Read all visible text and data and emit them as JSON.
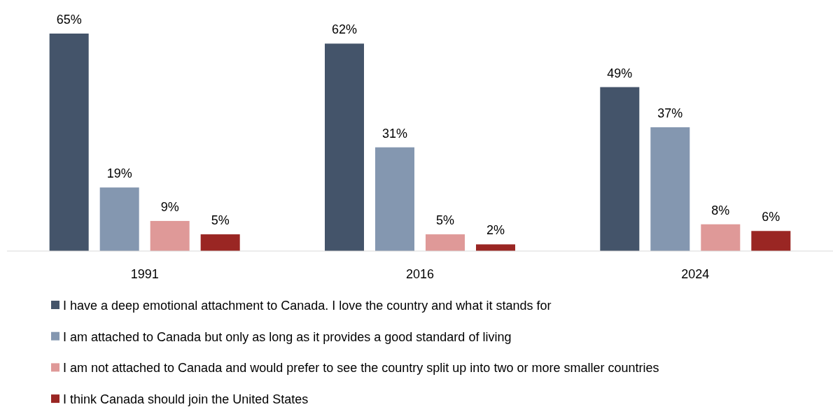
{
  "chart_data": {
    "type": "bar",
    "categories": [
      "1991",
      "2016",
      "2024"
    ],
    "series": [
      {
        "name": "I have a deep emotional attachment to Canada. I love the country and what it stands for",
        "color": "#44546a",
        "values": [
          65,
          62,
          49
        ],
        "value_labels": [
          "65%",
          "62%",
          "49%"
        ]
      },
      {
        "name": "I am attached to Canada but only as long as it provides a good standard of living",
        "color": "#8497b0",
        "values": [
          19,
          31,
          37
        ],
        "value_labels": [
          "19%",
          "31%",
          "37%"
        ]
      },
      {
        "name": "I am not attached to Canada and would prefer to see the country split up into two or more smaller countries",
        "color": "#df9998",
        "values": [
          9,
          5,
          8
        ],
        "value_labels": [
          "9%",
          "5%",
          "8%"
        ]
      },
      {
        "name": "I think Canada should join the United States",
        "color": "#9a2623",
        "values": [
          5,
          2,
          6
        ],
        "value_labels": [
          "5%",
          "2%",
          "6%"
        ]
      }
    ],
    "legend": "bottom",
    "grid": false
  }
}
